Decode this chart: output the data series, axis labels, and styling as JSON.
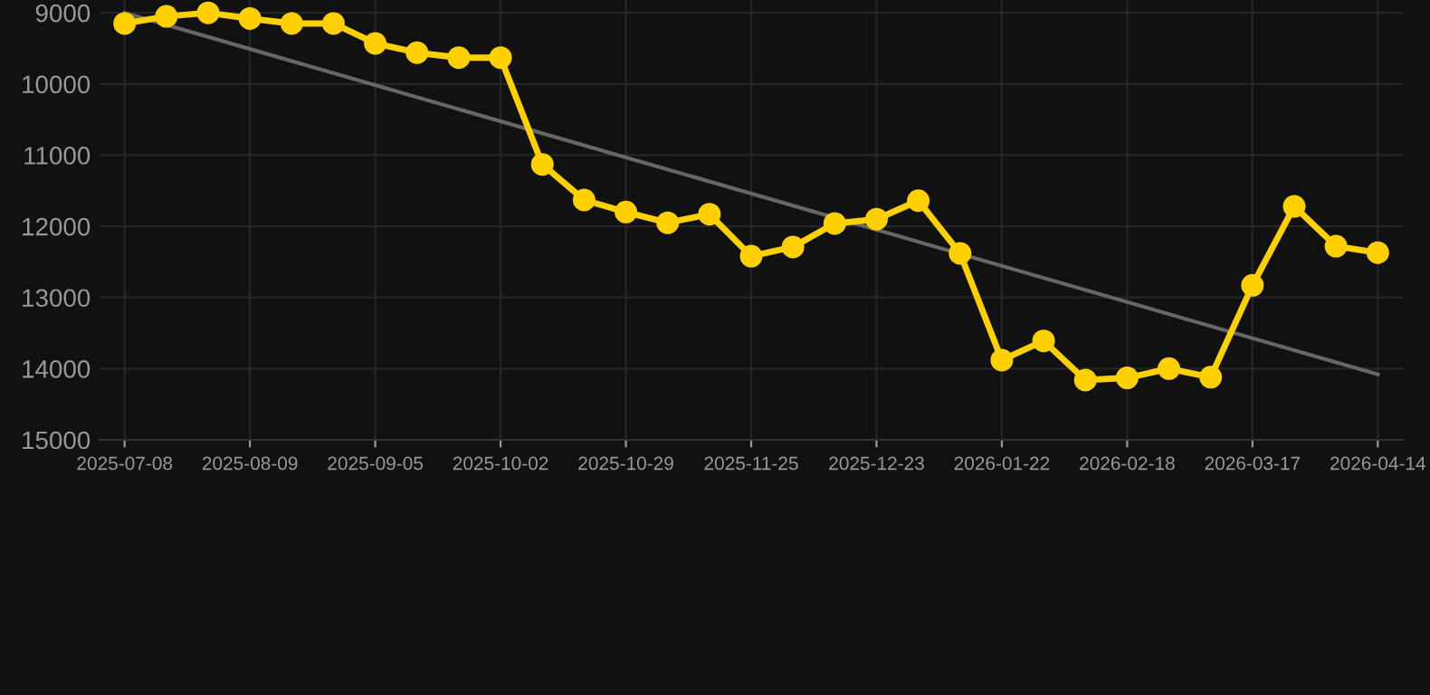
{
  "chart_data": {
    "type": "line",
    "categories": [
      "2025-07-08",
      null,
      null,
      "2025-08-09",
      null,
      null,
      "2025-09-05",
      null,
      null,
      "2025-10-02",
      null,
      null,
      "2025-10-29",
      null,
      null,
      "2025-11-25",
      null,
      null,
      "2025-12-23",
      null,
      null,
      "2026-01-22",
      null,
      null,
      "2026-02-18",
      null,
      null,
      "2026-03-17",
      null,
      null,
      "2026-04-14"
    ],
    "series": [
      {
        "color": "#ffd000",
        "marker": "circle",
        "values": [
          9150,
          9050,
          9000,
          9080,
          9150,
          9150,
          9430,
          9560,
          9630,
          9630,
          11130,
          11630,
          11800,
          11950,
          11830,
          12420,
          12290,
          11960,
          11900,
          11640,
          12380,
          13880,
          13610,
          14160,
          14130,
          14000,
          14120,
          12830,
          11720,
          12280,
          12370
        ]
      },
      {
        "type": "line",
        "color": "#666666",
        "marker": "none",
        "values": [
          9000,
          null,
          null,
          null,
          null,
          null,
          null,
          null,
          null,
          null,
          null,
          null,
          null,
          null,
          null,
          null,
          null,
          null,
          null,
          null,
          null,
          null,
          null,
          null,
          null,
          null,
          null,
          null,
          null,
          null,
          14080
        ]
      }
    ],
    "ylim": [
      15000,
      8820
    ],
    "yticks": [
      9000,
      10000,
      11000,
      12000,
      13000,
      14000,
      15000
    ],
    "grid": true
  }
}
